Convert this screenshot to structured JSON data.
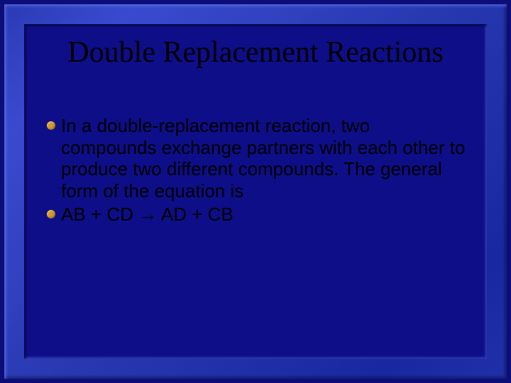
{
  "slide": {
    "background_outer": "#0d0d7a",
    "frame_gradient_start": "#2a3ab5",
    "frame_gradient_end": "#2030a8",
    "panel_color": "#0e0e88",
    "title": "Double Replacement Reactions",
    "title_font": "Times New Roman",
    "title_fontsize": 42,
    "title_color": "#000000",
    "bullet_color": "#d4992b",
    "body_font": "Arial",
    "body_fontsize": 26,
    "body_color": "#000000",
    "bullets": [
      {
        "text": "In a double-replacement reaction, two compounds exchange partners with each other to produce two different compounds.  The general form of the equation is"
      },
      {
        "text": "AB  +  CD  →  AD  +  CB"
      }
    ]
  }
}
